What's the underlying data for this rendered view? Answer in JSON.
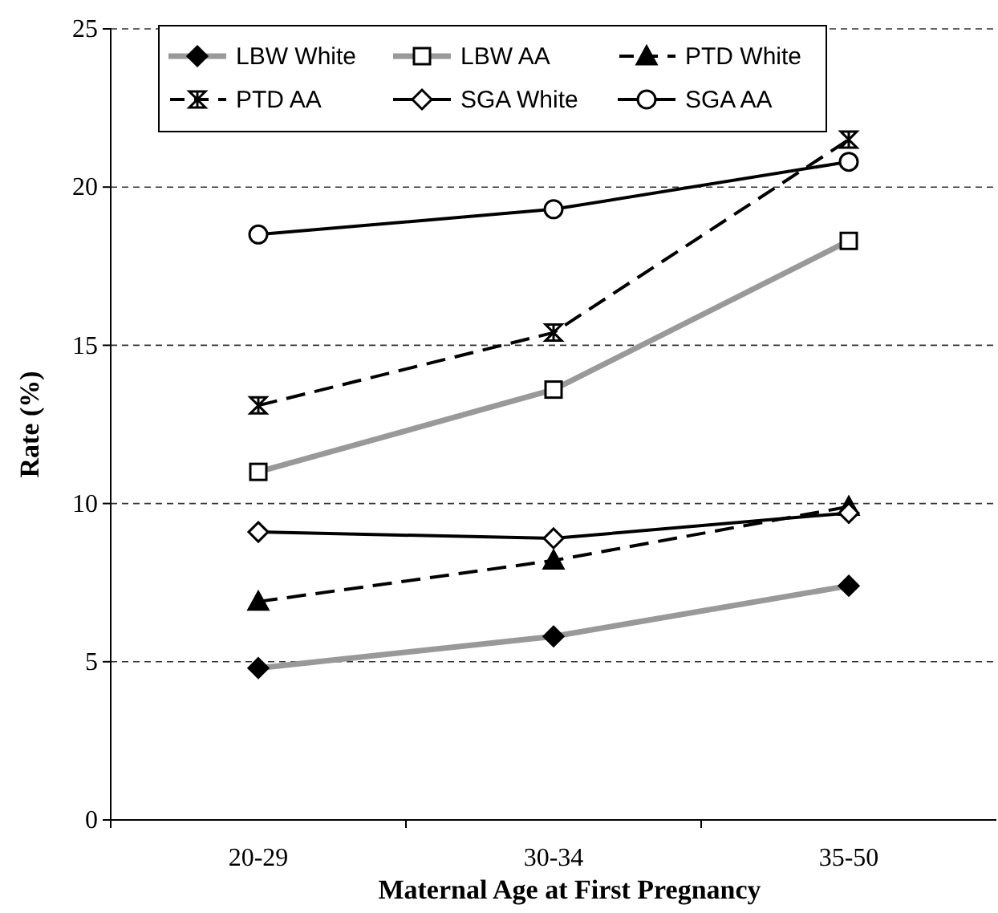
{
  "chart_data": {
    "type": "line",
    "xlabel": "Maternal Age at First Pregnancy",
    "ylabel": "Rate (%)",
    "categories": [
      "20-29",
      "30-34",
      "35-50"
    ],
    "ylim": [
      0,
      25
    ],
    "yticks": [
      0,
      5,
      10,
      15,
      20,
      25
    ],
    "grid": "y",
    "legend": "top left",
    "series": [
      {
        "name": "LBW White",
        "color": "#999999",
        "marker": "diamond",
        "line_style": "solid",
        "values": [
          4.8,
          5.8,
          7.4
        ]
      },
      {
        "name": "LBW AA",
        "color": "#999999",
        "marker": "square",
        "line_style": "solid",
        "values": [
          11.0,
          13.6,
          18.3
        ]
      },
      {
        "name": "PTD White",
        "color": "#000000",
        "marker": "triangle",
        "line_style": "dashed",
        "values": [
          6.9,
          8.2,
          9.9
        ]
      },
      {
        "name": "PTD AA",
        "color": "#000000",
        "marker": "cross",
        "line_style": "dashed",
        "values": [
          13.1,
          15.4,
          21.5
        ]
      },
      {
        "name": "SGA White",
        "color": "#000000",
        "marker": "diamond",
        "line_style": "solid",
        "values": [
          9.1,
          8.9,
          9.7
        ]
      },
      {
        "name": "SGA AA",
        "color": "#000000",
        "marker": "circle",
        "line_style": "solid",
        "values": [
          18.5,
          19.3,
          20.8
        ]
      }
    ]
  }
}
